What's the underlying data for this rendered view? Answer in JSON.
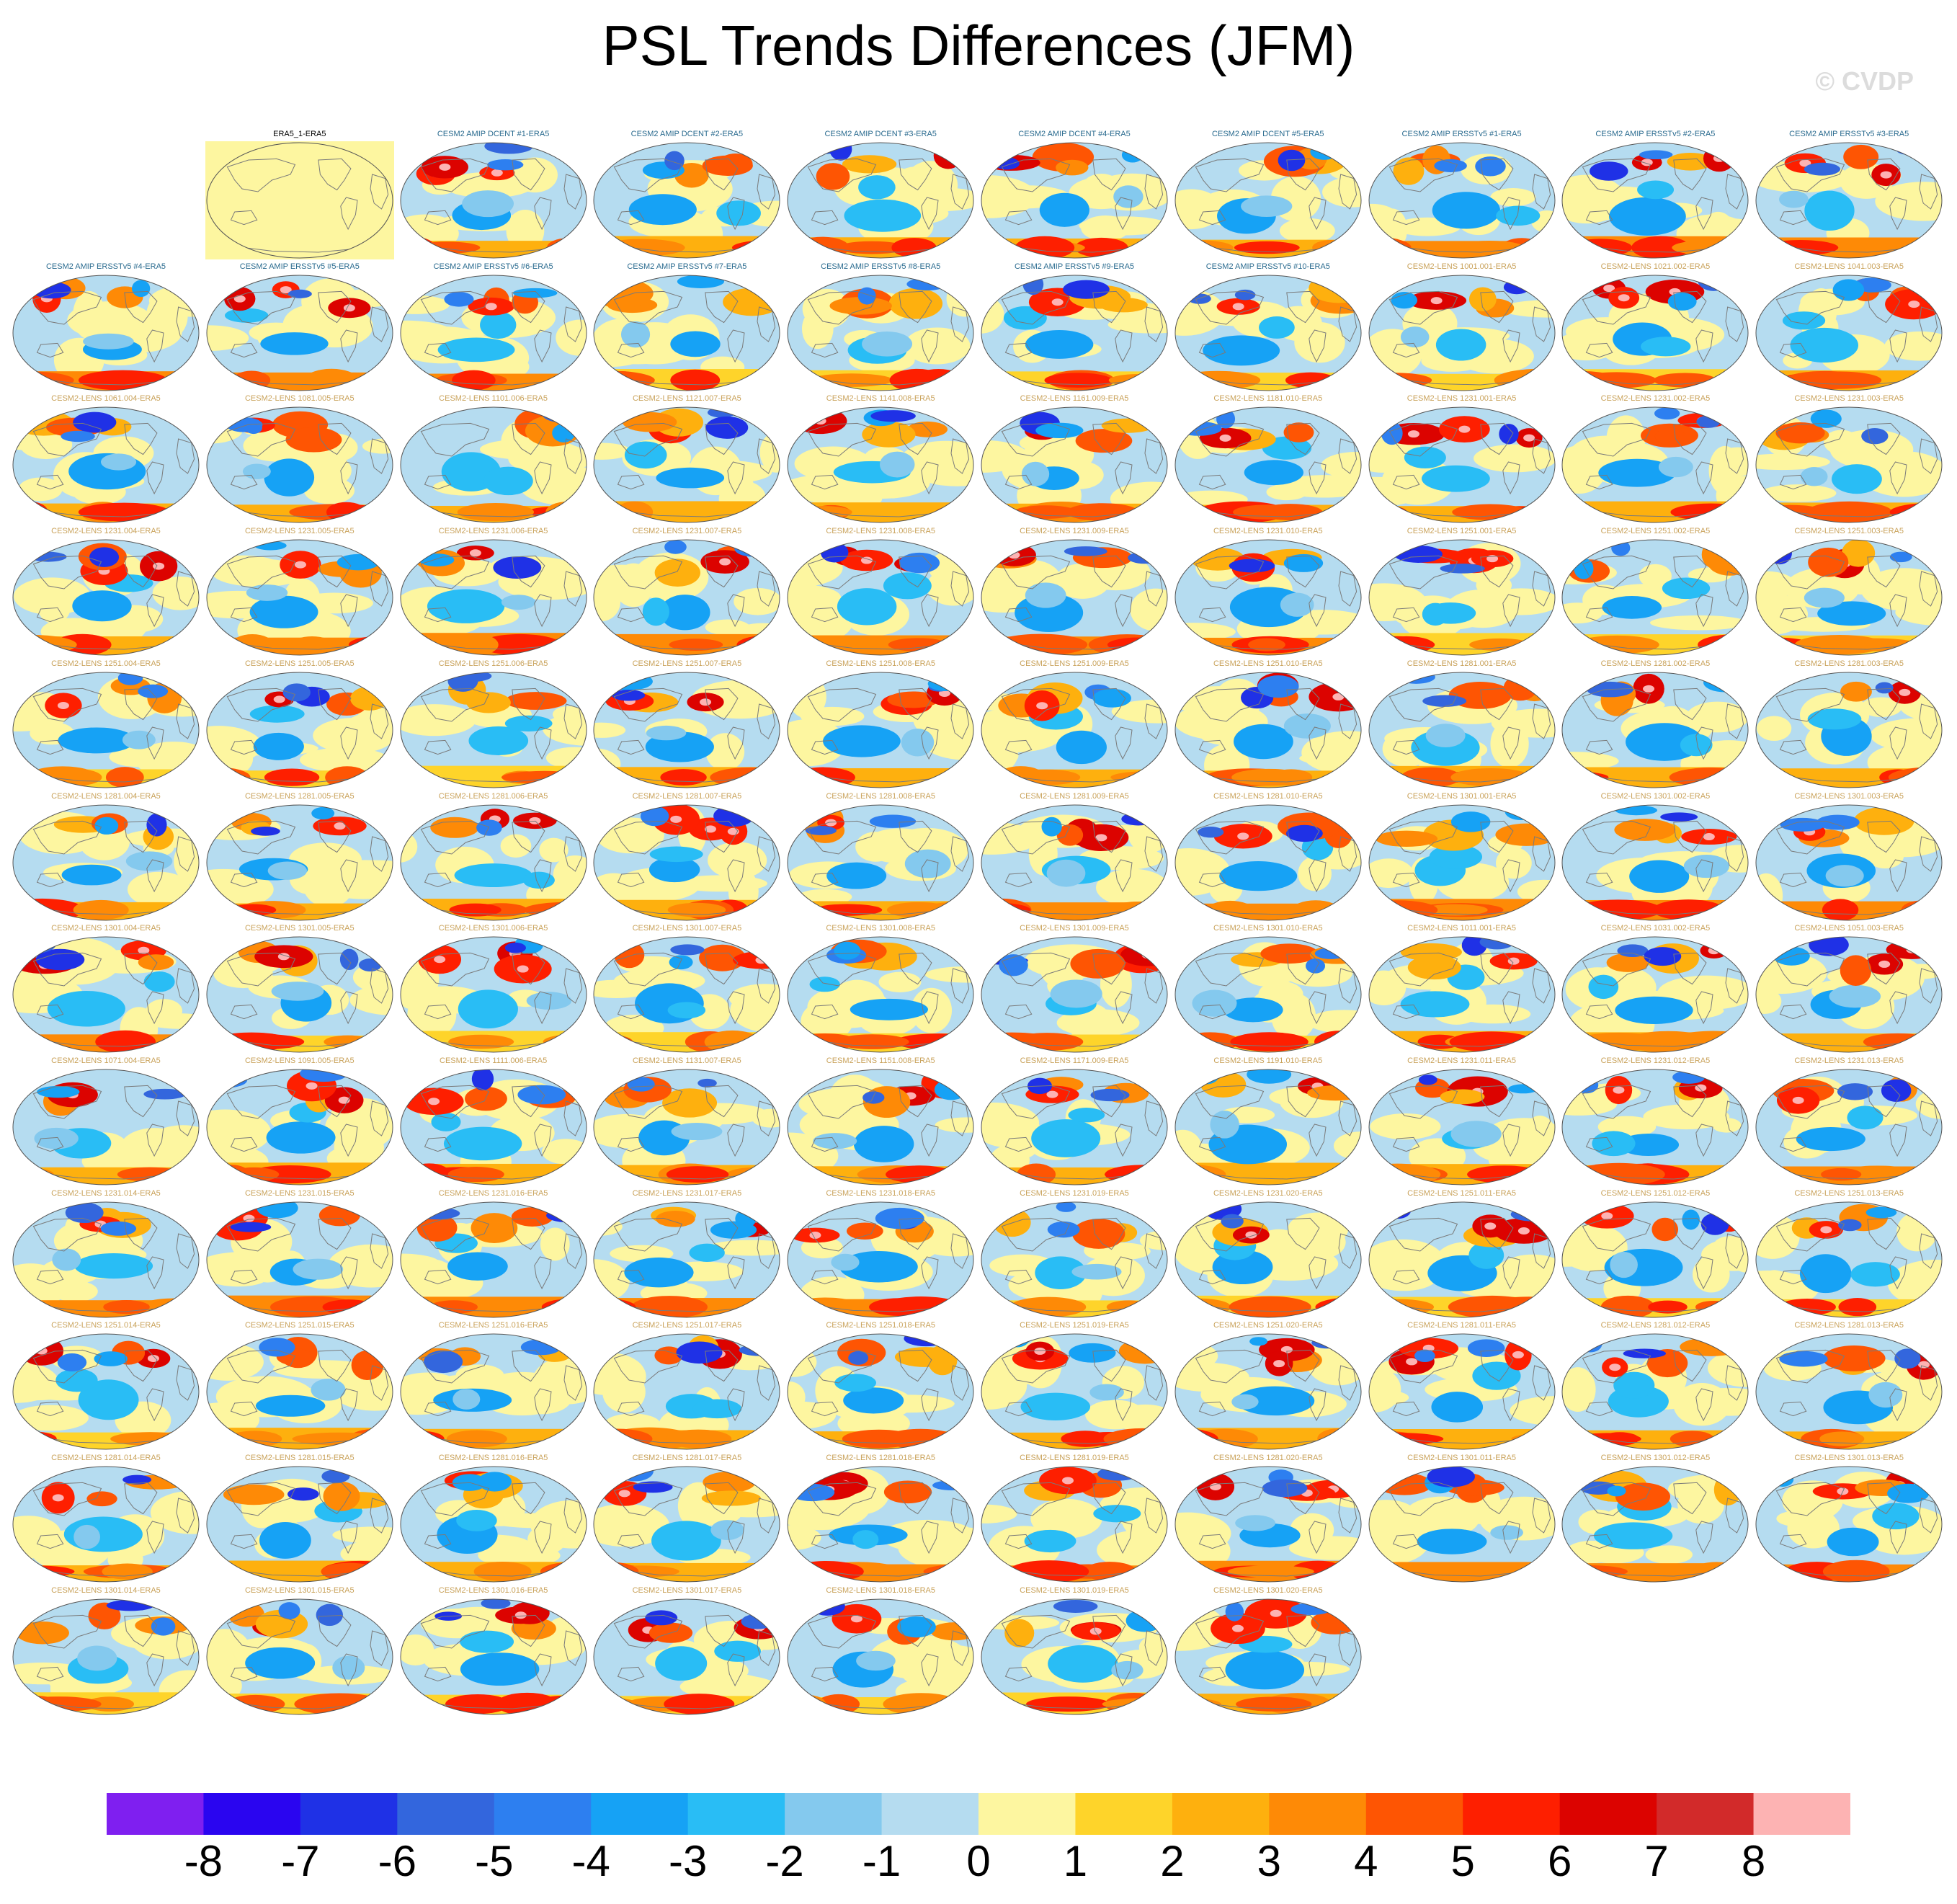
{
  "title": "PSL Trends Differences (JFM)",
  "watermark": "© CVDP",
  "chart_data": {
    "type": "heatmap",
    "title": "PSL Trends Differences (JFM)",
    "subtitle": "",
    "grid": false,
    "colorbar": {
      "position": "bottom",
      "levels": [
        -8,
        -7,
        -6,
        -5,
        -4,
        -3,
        -2,
        -1,
        0,
        1,
        2,
        3,
        4,
        5,
        6,
        7,
        8
      ],
      "tick_labels": [
        "-8",
        "-7",
        "-6",
        "-5",
        "-4",
        "-3",
        "-2",
        "-1",
        "0",
        "1",
        "2",
        "3",
        "4",
        "5",
        "6",
        "7",
        "8"
      ],
      "colors": [
        "#7f1ff0",
        "#2a05f0",
        "#1f31e6",
        "#3366dd",
        "#2d7ff0",
        "#16a2f5",
        "#29bdf5",
        "#84c9ee",
        "#b5dcf0",
        "#fdf6a0",
        "#fed42a",
        "#feb00e",
        "#fe8a06",
        "#fe5503",
        "#fe1f00",
        "#dc0300",
        "#d22a2a",
        "#fdb3b3"
      ]
    },
    "panels": [
      {
        "label": "ERA5_1-ERA5",
        "type": "reference",
        "label_color": "#000000",
        "fill": "#fdf6a0"
      },
      {
        "label": "CESM2 AMIP DCENT #1-ERA5",
        "label_color": "#2a6b8f",
        "seed": 101
      },
      {
        "label": "CESM2 AMIP DCENT #2-ERA5",
        "label_color": "#2a6b8f",
        "seed": 102
      },
      {
        "label": "CESM2 AMIP DCENT #3-ERA5",
        "label_color": "#2a6b8f",
        "seed": 103
      },
      {
        "label": "CESM2 AMIP DCENT #4-ERA5",
        "label_color": "#2a6b8f",
        "seed": 104
      },
      {
        "label": "CESM2 AMIP DCENT #5-ERA5",
        "label_color": "#2a6b8f",
        "seed": 105
      },
      {
        "label": "CESM2 AMIP ERSSTv5 #1-ERA5",
        "label_color": "#2a6b8f",
        "seed": 106
      },
      {
        "label": "CESM2 AMIP ERSSTv5 #2-ERA5",
        "label_color": "#2a6b8f",
        "seed": 107
      },
      {
        "label": "CESM2 AMIP ERSSTv5 #3-ERA5",
        "label_color": "#2a6b8f",
        "seed": 108
      },
      {
        "label": "CESM2 AMIP ERSSTv5 #4-ERA5",
        "label_color": "#2a6b8f",
        "seed": 109
      },
      {
        "label": "CESM2 AMIP ERSSTv5 #5-ERA5",
        "label_color": "#2a6b8f",
        "seed": 110
      },
      {
        "label": "CESM2 AMIP ERSSTv5 #6-ERA5",
        "label_color": "#2a6b8f",
        "seed": 111
      },
      {
        "label": "CESM2 AMIP ERSSTv5 #7-ERA5",
        "label_color": "#2a6b8f",
        "seed": 112
      },
      {
        "label": "CESM2 AMIP ERSSTv5 #8-ERA5",
        "label_color": "#2a6b8f",
        "seed": 113
      },
      {
        "label": "CESM2 AMIP ERSSTv5 #9-ERA5",
        "label_color": "#2a6b8f",
        "seed": 114
      },
      {
        "label": "CESM2 AMIP ERSSTv5 #10-ERA5",
        "label_color": "#2a6b8f",
        "seed": 115
      },
      {
        "label": "CESM2-LENS 1001.001-ERA5",
        "label_color": "#c9a25a",
        "seed": 116
      },
      {
        "label": "CESM2-LENS 1021.002-ERA5",
        "label_color": "#c9a25a",
        "seed": 117
      },
      {
        "label": "CESM2-LENS 1041.003-ERA5",
        "label_color": "#c9a25a",
        "seed": 118
      },
      {
        "label": "CESM2-LENS 1061.004-ERA5",
        "label_color": "#c9a25a",
        "seed": 119
      },
      {
        "label": "CESM2-LENS 1081.005-ERA5",
        "label_color": "#c9a25a",
        "seed": 120
      },
      {
        "label": "CESM2-LENS 1101.006-ERA5",
        "label_color": "#c9a25a",
        "seed": 121
      },
      {
        "label": "CESM2-LENS 1121.007-ERA5",
        "label_color": "#c9a25a",
        "seed": 122
      },
      {
        "label": "CESM2-LENS 1141.008-ERA5",
        "label_color": "#c9a25a",
        "seed": 123
      },
      {
        "label": "CESM2-LENS 1161.009-ERA5",
        "label_color": "#c9a25a",
        "seed": 124
      },
      {
        "label": "CESM2-LENS 1181.010-ERA5",
        "label_color": "#c9a25a",
        "seed": 125
      },
      {
        "label": "CESM2-LENS 1231.001-ERA5",
        "label_color": "#c9a25a",
        "seed": 126
      },
      {
        "label": "CESM2-LENS 1231.002-ERA5",
        "label_color": "#c9a25a",
        "seed": 127
      },
      {
        "label": "CESM2-LENS 1231.003-ERA5",
        "label_color": "#c9a25a",
        "seed": 128
      },
      {
        "label": "CESM2-LENS 1231.004-ERA5",
        "label_color": "#c9a25a",
        "seed": 129
      },
      {
        "label": "CESM2-LENS 1231.005-ERA5",
        "label_color": "#c9a25a",
        "seed": 130
      },
      {
        "label": "CESM2-LENS 1231.006-ERA5",
        "label_color": "#c9a25a",
        "seed": 131
      },
      {
        "label": "CESM2-LENS 1231.007-ERA5",
        "label_color": "#c9a25a",
        "seed": 132
      },
      {
        "label": "CESM2-LENS 1231.008-ERA5",
        "label_color": "#c9a25a",
        "seed": 133
      },
      {
        "label": "CESM2-LENS 1231.009-ERA5",
        "label_color": "#c9a25a",
        "seed": 134
      },
      {
        "label": "CESM2-LENS 1231.010-ERA5",
        "label_color": "#c9a25a",
        "seed": 135
      },
      {
        "label": "CESM2-LENS 1251.001-ERA5",
        "label_color": "#c9a25a",
        "seed": 136
      },
      {
        "label": "CESM2-LENS 1251.002-ERA5",
        "label_color": "#c9a25a",
        "seed": 137
      },
      {
        "label": "CESM2-LENS 1251.003-ERA5",
        "label_color": "#c9a25a",
        "seed": 138
      },
      {
        "label": "CESM2-LENS 1251.004-ERA5",
        "label_color": "#c9a25a",
        "seed": 139
      },
      {
        "label": "CESM2-LENS 1251.005-ERA5",
        "label_color": "#c9a25a",
        "seed": 140
      },
      {
        "label": "CESM2-LENS 1251.006-ERA5",
        "label_color": "#c9a25a",
        "seed": 141
      },
      {
        "label": "CESM2-LENS 1251.007-ERA5",
        "label_color": "#c9a25a",
        "seed": 142
      },
      {
        "label": "CESM2-LENS 1251.008-ERA5",
        "label_color": "#c9a25a",
        "seed": 143
      },
      {
        "label": "CESM2-LENS 1251.009-ERA5",
        "label_color": "#c9a25a",
        "seed": 144
      },
      {
        "label": "CESM2-LENS 1251.010-ERA5",
        "label_color": "#c9a25a",
        "seed": 145
      },
      {
        "label": "CESM2-LENS 1281.001-ERA5",
        "label_color": "#c9a25a",
        "seed": 146
      },
      {
        "label": "CESM2-LENS 1281.002-ERA5",
        "label_color": "#c9a25a",
        "seed": 147
      },
      {
        "label": "CESM2-LENS 1281.003-ERA5",
        "label_color": "#c9a25a",
        "seed": 148
      },
      {
        "label": "CESM2-LENS 1281.004-ERA5",
        "label_color": "#c9a25a",
        "seed": 149
      },
      {
        "label": "CESM2-LENS 1281.005-ERA5",
        "label_color": "#c9a25a",
        "seed": 150
      },
      {
        "label": "CESM2-LENS 1281.006-ERA5",
        "label_color": "#c9a25a",
        "seed": 151
      },
      {
        "label": "CESM2-LENS 1281.007-ERA5",
        "label_color": "#c9a25a",
        "seed": 152
      },
      {
        "label": "CESM2-LENS 1281.008-ERA5",
        "label_color": "#c9a25a",
        "seed": 153
      },
      {
        "label": "CESM2-LENS 1281.009-ERA5",
        "label_color": "#c9a25a",
        "seed": 154
      },
      {
        "label": "CESM2-LENS 1281.010-ERA5",
        "label_color": "#c9a25a",
        "seed": 155
      },
      {
        "label": "CESM2-LENS 1301.001-ERA5",
        "label_color": "#c9a25a",
        "seed": 156
      },
      {
        "label": "CESM2-LENS 1301.002-ERA5",
        "label_color": "#c9a25a",
        "seed": 157
      },
      {
        "label": "CESM2-LENS 1301.003-ERA5",
        "label_color": "#c9a25a",
        "seed": 158
      },
      {
        "label": "CESM2-LENS 1301.004-ERA5",
        "label_color": "#c9a25a",
        "seed": 159
      },
      {
        "label": "CESM2-LENS 1301.005-ERA5",
        "label_color": "#c9a25a",
        "seed": 160
      },
      {
        "label": "CESM2-LENS 1301.006-ERA5",
        "label_color": "#c9a25a",
        "seed": 161
      },
      {
        "label": "CESM2-LENS 1301.007-ERA5",
        "label_color": "#c9a25a",
        "seed": 162
      },
      {
        "label": "CESM2-LENS 1301.008-ERA5",
        "label_color": "#c9a25a",
        "seed": 163
      },
      {
        "label": "CESM2-LENS 1301.009-ERA5",
        "label_color": "#c9a25a",
        "seed": 164
      },
      {
        "label": "CESM2-LENS 1301.010-ERA5",
        "label_color": "#c9a25a",
        "seed": 165
      },
      {
        "label": "CESM2-LENS 1011.001-ERA5",
        "label_color": "#c9a25a",
        "seed": 166
      },
      {
        "label": "CESM2-LENS 1031.002-ERA5",
        "label_color": "#c9a25a",
        "seed": 167
      },
      {
        "label": "CESM2-LENS 1051.003-ERA5",
        "label_color": "#c9a25a",
        "seed": 168
      },
      {
        "label": "CESM2-LENS 1071.004-ERA5",
        "label_color": "#c9a25a",
        "seed": 169
      },
      {
        "label": "CESM2-LENS 1091.005-ERA5",
        "label_color": "#c9a25a",
        "seed": 170
      },
      {
        "label": "CESM2-LENS 1111.006-ERA5",
        "label_color": "#c9a25a",
        "seed": 171
      },
      {
        "label": "CESM2-LENS 1131.007-ERA5",
        "label_color": "#c9a25a",
        "seed": 172
      },
      {
        "label": "CESM2-LENS 1151.008-ERA5",
        "label_color": "#c9a25a",
        "seed": 173
      },
      {
        "label": "CESM2-LENS 1171.009-ERA5",
        "label_color": "#c9a25a",
        "seed": 174
      },
      {
        "label": "CESM2-LENS 1191.010-ERA5",
        "label_color": "#c9a25a",
        "seed": 175
      },
      {
        "label": "CESM2-LENS 1231.011-ERA5",
        "label_color": "#c9a25a",
        "seed": 176
      },
      {
        "label": "CESM2-LENS 1231.012-ERA5",
        "label_color": "#c9a25a",
        "seed": 177
      },
      {
        "label": "CESM2-LENS 1231.013-ERA5",
        "label_color": "#c9a25a",
        "seed": 178
      },
      {
        "label": "CESM2-LENS 1231.014-ERA5",
        "label_color": "#c9a25a",
        "seed": 179
      },
      {
        "label": "CESM2-LENS 1231.015-ERA5",
        "label_color": "#c9a25a",
        "seed": 180
      },
      {
        "label": "CESM2-LENS 1231.016-ERA5",
        "label_color": "#c9a25a",
        "seed": 181
      },
      {
        "label": "CESM2-LENS 1231.017-ERA5",
        "label_color": "#c9a25a",
        "seed": 182
      },
      {
        "label": "CESM2-LENS 1231.018-ERA5",
        "label_color": "#c9a25a",
        "seed": 183
      },
      {
        "label": "CESM2-LENS 1231.019-ERA5",
        "label_color": "#c9a25a",
        "seed": 184
      },
      {
        "label": "CESM2-LENS 1231.020-ERA5",
        "label_color": "#c9a25a",
        "seed": 185
      },
      {
        "label": "CESM2-LENS 1251.011-ERA5",
        "label_color": "#c9a25a",
        "seed": 186
      },
      {
        "label": "CESM2-LENS 1251.012-ERA5",
        "label_color": "#c9a25a",
        "seed": 187
      },
      {
        "label": "CESM2-LENS 1251.013-ERA5",
        "label_color": "#c9a25a",
        "seed": 188
      },
      {
        "label": "CESM2-LENS 1251.014-ERA5",
        "label_color": "#c9a25a",
        "seed": 189
      },
      {
        "label": "CESM2-LENS 1251.015-ERA5",
        "label_color": "#c9a25a",
        "seed": 190
      },
      {
        "label": "CESM2-LENS 1251.016-ERA5",
        "label_color": "#c9a25a",
        "seed": 191
      },
      {
        "label": "CESM2-LENS 1251.017-ERA5",
        "label_color": "#c9a25a",
        "seed": 192
      },
      {
        "label": "CESM2-LENS 1251.018-ERA5",
        "label_color": "#c9a25a",
        "seed": 193
      },
      {
        "label": "CESM2-LENS 1251.019-ERA5",
        "label_color": "#c9a25a",
        "seed": 194
      },
      {
        "label": "CESM2-LENS 1251.020-ERA5",
        "label_color": "#c9a25a",
        "seed": 195
      },
      {
        "label": "CESM2-LENS 1281.011-ERA5",
        "label_color": "#c9a25a",
        "seed": 196
      },
      {
        "label": "CESM2-LENS 1281.012-ERA5",
        "label_color": "#c9a25a",
        "seed": 197
      },
      {
        "label": "CESM2-LENS 1281.013-ERA5",
        "label_color": "#c9a25a",
        "seed": 198
      },
      {
        "label": "CESM2-LENS 1281.014-ERA5",
        "label_color": "#c9a25a",
        "seed": 199
      },
      {
        "label": "CESM2-LENS 1281.015-ERA5",
        "label_color": "#c9a25a",
        "seed": 200
      },
      {
        "label": "CESM2-LENS 1281.016-ERA5",
        "label_color": "#c9a25a",
        "seed": 201
      },
      {
        "label": "CESM2-LENS 1281.017-ERA5",
        "label_color": "#c9a25a",
        "seed": 202
      },
      {
        "label": "CESM2-LENS 1281.018-ERA5",
        "label_color": "#c9a25a",
        "seed": 203
      },
      {
        "label": "CESM2-LENS 1281.019-ERA5",
        "label_color": "#c9a25a",
        "seed": 204
      },
      {
        "label": "CESM2-LENS 1281.020-ERA5",
        "label_color": "#c9a25a",
        "seed": 205
      },
      {
        "label": "CESM2-LENS 1301.011-ERA5",
        "label_color": "#c9a25a",
        "seed": 206
      },
      {
        "label": "CESM2-LENS 1301.012-ERA5",
        "label_color": "#c9a25a",
        "seed": 207
      },
      {
        "label": "CESM2-LENS 1301.013-ERA5",
        "label_color": "#c9a25a",
        "seed": 208
      },
      {
        "label": "CESM2-LENS 1301.014-ERA5",
        "label_color": "#c9a25a",
        "seed": 209
      },
      {
        "label": "CESM2-LENS 1301.015-ERA5",
        "label_color": "#c9a25a",
        "seed": 210
      },
      {
        "label": "CESM2-LENS 1301.016-ERA5",
        "label_color": "#c9a25a",
        "seed": 211
      },
      {
        "label": "CESM2-LENS 1301.017-ERA5",
        "label_color": "#c9a25a",
        "seed": 212
      },
      {
        "label": "CESM2-LENS 1301.018-ERA5",
        "label_color": "#c9a25a",
        "seed": 213
      },
      {
        "label": "CESM2-LENS 1301.019-ERA5",
        "label_color": "#c9a25a",
        "seed": 214
      },
      {
        "label": "CESM2-LENS 1301.020-ERA5",
        "label_color": "#c9a25a",
        "seed": 215
      }
    ]
  }
}
